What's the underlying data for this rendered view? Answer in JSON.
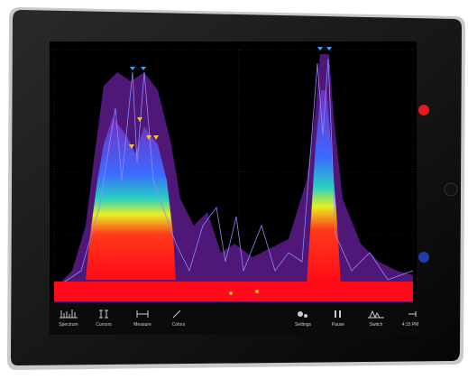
{
  "toolbar": {
    "buttons": [
      "Spectrum",
      "Cursors",
      "Measure",
      "Colors",
      "Settings",
      "Pause",
      "Switch"
    ],
    "time": "4:15 PM"
  }
}
